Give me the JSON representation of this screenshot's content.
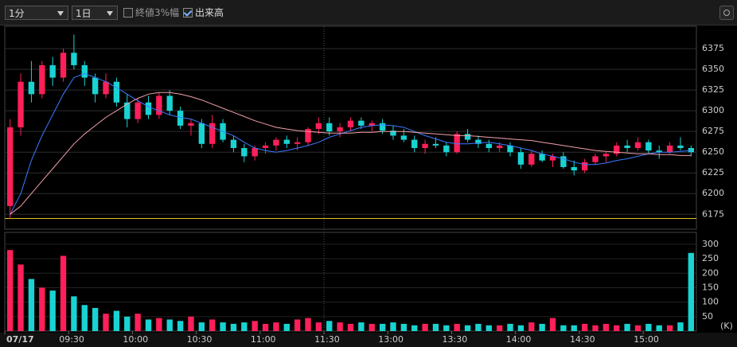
{
  "toolbar": {
    "interval": "1分",
    "period": "1日",
    "options": [
      {
        "label": "終値3%幅",
        "checked": false
      },
      {
        "label": "出来高",
        "checked": true
      }
    ]
  },
  "chart_data": {
    "type": "candlestick",
    "categories": [
      "07/17",
      null,
      null,
      null,
      null,
      null,
      "09:30",
      null,
      null,
      null,
      null,
      null,
      "10:00",
      null,
      null,
      null,
      null,
      null,
      "10:30",
      null,
      null,
      null,
      null,
      null,
      "11:00",
      null,
      null,
      null,
      null,
      null,
      "11:30",
      null,
      null,
      null,
      null,
      null,
      "13:00",
      null,
      null,
      null,
      null,
      null,
      "13:30",
      null,
      null,
      null,
      null,
      null,
      "14:00",
      null,
      null,
      null,
      null,
      null,
      "14:30",
      null,
      null,
      null,
      null,
      null,
      "15:00",
      null,
      null,
      null,
      null
    ],
    "open": [
      6185,
      6280,
      6335,
      6320,
      6355,
      6340,
      6370,
      6355,
      6340,
      6320,
      6335,
      6310,
      6290,
      6310,
      6295,
      6318,
      6300,
      6282,
      6285,
      6260,
      6285,
      6265,
      6255,
      6245,
      6255,
      6258,
      6265,
      6260,
      6262,
      6278,
      6285,
      6275,
      6280,
      6288,
      6282,
      6285,
      6276,
      6270,
      6265,
      6255,
      6260,
      6258,
      6250,
      6272,
      6265,
      6260,
      6255,
      6258,
      6250,
      6235,
      6248,
      6240,
      6245,
      6232,
      6228,
      6238,
      6245,
      6248,
      6258,
      6255,
      6262,
      6252,
      6250,
      6258,
      6255
    ],
    "high": [
      6290,
      6345,
      6360,
      6360,
      6365,
      6375,
      6392,
      6360,
      6345,
      6345,
      6340,
      6320,
      6315,
      6318,
      6322,
      6325,
      6305,
      6290,
      6290,
      6295,
      6290,
      6270,
      6260,
      6258,
      6262,
      6268,
      6270,
      6268,
      6280,
      6292,
      6292,
      6285,
      6292,
      6292,
      6288,
      6290,
      6282,
      6278,
      6270,
      6265,
      6268,
      6262,
      6275,
      6278,
      6270,
      6265,
      6262,
      6262,
      6255,
      6252,
      6252,
      6248,
      6250,
      6240,
      6242,
      6248,
      6250,
      6262,
      6265,
      6268,
      6265,
      6258,
      6262,
      6268,
      6258
    ],
    "low": [
      6170,
      6270,
      6310,
      6315,
      6330,
      6335,
      6350,
      6330,
      6310,
      6315,
      6305,
      6280,
      6285,
      6290,
      6290,
      6295,
      6278,
      6270,
      6255,
      6255,
      6262,
      6250,
      6238,
      6240,
      6248,
      6252,
      6255,
      6252,
      6258,
      6272,
      6270,
      6268,
      6275,
      6278,
      6275,
      6272,
      6265,
      6262,
      6250,
      6248,
      6255,
      6245,
      6248,
      6262,
      6255,
      6250,
      6250,
      6245,
      6230,
      6232,
      6238,
      6232,
      6230,
      6222,
      6225,
      6235,
      6238,
      6245,
      6250,
      6252,
      6248,
      6242,
      6248,
      6252,
      6245
    ],
    "close": [
      6280,
      6335,
      6320,
      6355,
      6340,
      6370,
      6355,
      6340,
      6320,
      6335,
      6310,
      6290,
      6310,
      6295,
      6318,
      6300,
      6282,
      6285,
      6260,
      6285,
      6265,
      6255,
      6245,
      6255,
      6258,
      6265,
      6260,
      6262,
      6278,
      6285,
      6275,
      6280,
      6288,
      6282,
      6285,
      6276,
      6270,
      6265,
      6255,
      6260,
      6258,
      6250,
      6272,
      6265,
      6260,
      6255,
      6258,
      6250,
      6235,
      6248,
      6240,
      6245,
      6232,
      6228,
      6238,
      6245,
      6248,
      6258,
      6255,
      6262,
      6252,
      6250,
      6258,
      6255,
      6250
    ],
    "up_color": "#ff1f5a",
    "down_color": "#19d3d3",
    "ma_lines": [
      {
        "color": "#3a7bff",
        "values": [
          6175,
          6200,
          6240,
          6270,
          6295,
          6320,
          6340,
          6345,
          6340,
          6335,
          6328,
          6320,
          6312,
          6305,
          6300,
          6295,
          6292,
          6290,
          6285,
          6280,
          6275,
          6270,
          6262,
          6255,
          6252,
          6250,
          6252,
          6255,
          6258,
          6262,
          6268,
          6272,
          6276,
          6280,
          6282,
          6283,
          6282,
          6280,
          6275,
          6270,
          6266,
          6262,
          6260,
          6260,
          6261,
          6262,
          6260,
          6258,
          6255,
          6252,
          6248,
          6245,
          6242,
          6238,
          6235,
          6235,
          6237,
          6240,
          6242,
          6245,
          6248,
          6250,
          6250,
          6251,
          6252
        ]
      },
      {
        "color": "#f0a0a8",
        "values": [
          6175,
          6185,
          6200,
          6215,
          6230,
          6245,
          6260,
          6272,
          6282,
          6292,
          6300,
          6308,
          6315,
          6320,
          6322,
          6322,
          6320,
          6317,
          6313,
          6308,
          6303,
          6298,
          6293,
          6288,
          6284,
          6280,
          6278,
          6276,
          6275,
          6274,
          6273,
          6273,
          6273,
          6274,
          6274,
          6275,
          6275,
          6275,
          6274,
          6273,
          6272,
          6271,
          6270,
          6270,
          6269,
          6268,
          6267,
          6266,
          6265,
          6264,
          6262,
          6260,
          6258,
          6256,
          6254,
          6252,
          6251,
          6250,
          6249,
          6248,
          6248,
          6247,
          6247,
          6246,
          6246
        ]
      }
    ],
    "reference_line": {
      "value": 6170,
      "color": "#e0c020"
    },
    "ylim": [
      6157,
      6402
    ],
    "yticks": [
      6175,
      6200,
      6225,
      6250,
      6275,
      6300,
      6325,
      6350,
      6375
    ],
    "grid": true,
    "volume": {
      "unit": "(K)",
      "ylim": [
        0,
        330
      ],
      "yticks": [
        50,
        100,
        150,
        200,
        250,
        300
      ],
      "values": [
        280,
        230,
        180,
        150,
        140,
        260,
        120,
        90,
        80,
        60,
        70,
        50,
        60,
        40,
        45,
        40,
        35,
        50,
        30,
        40,
        30,
        25,
        30,
        35,
        25,
        30,
        25,
        40,
        45,
        30,
        35,
        30,
        25,
        30,
        25,
        25,
        30,
        25,
        20,
        25,
        25,
        20,
        25,
        20,
        25,
        20,
        20,
        25,
        20,
        30,
        25,
        45,
        20,
        20,
        25,
        20,
        25,
        20,
        25,
        20,
        25,
        20,
        20,
        30,
        270
      ]
    }
  }
}
